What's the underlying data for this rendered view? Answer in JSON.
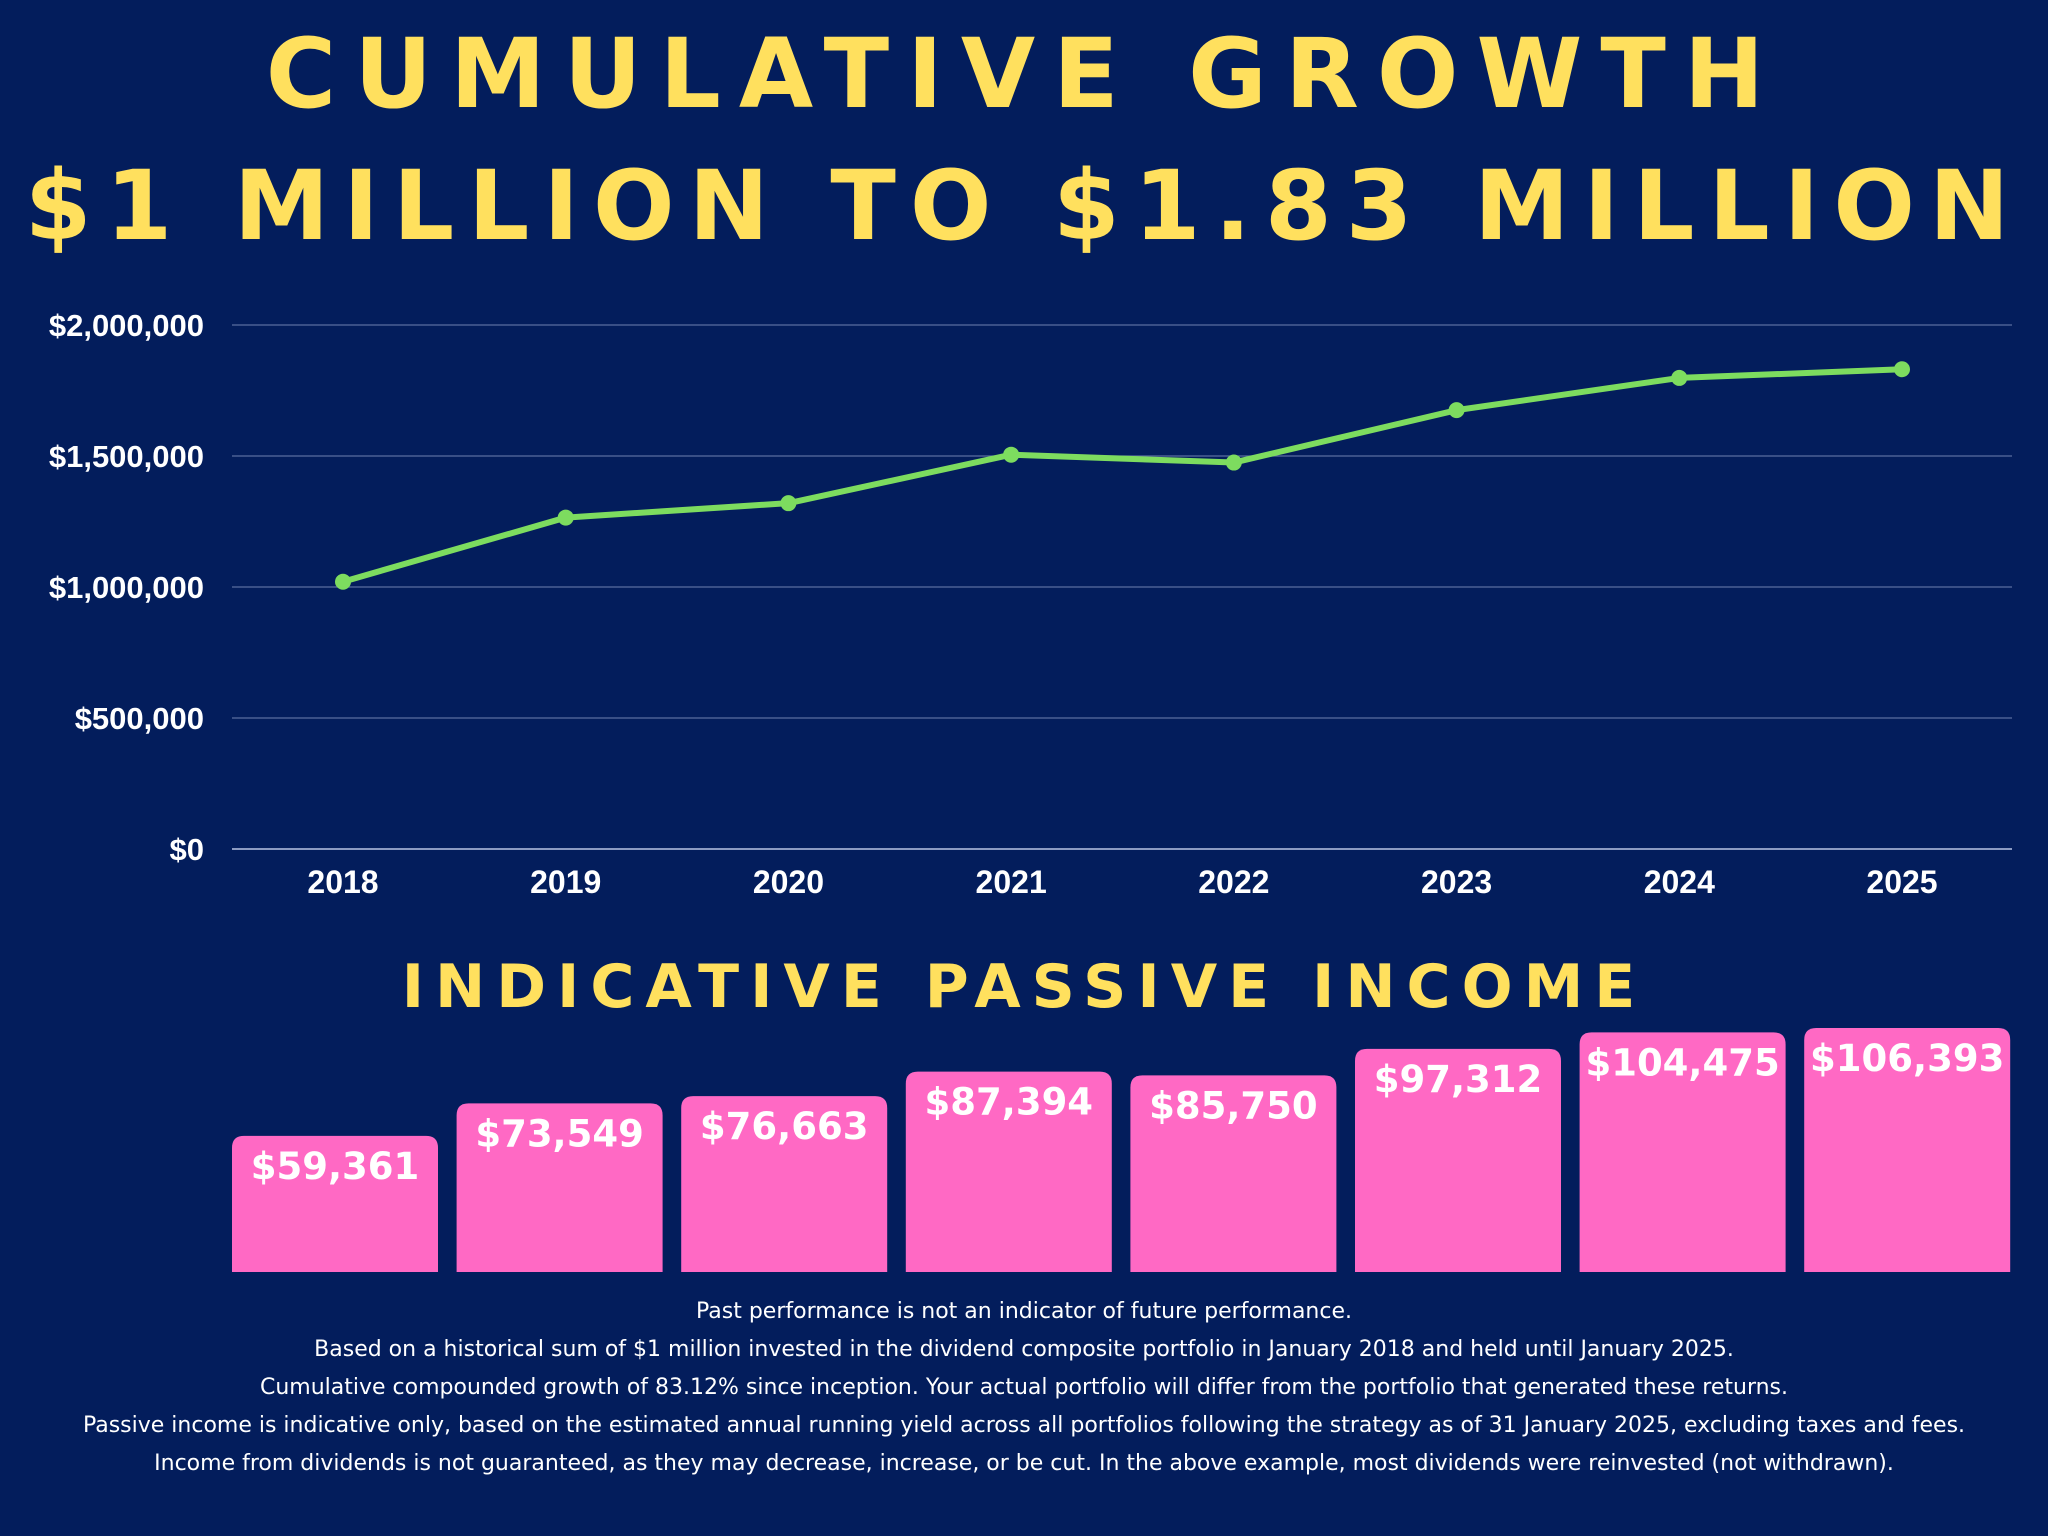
{
  "title_line1": "CUMULATIVE GROWTH",
  "title_line2": "$1 MILLION TO $1.83 MILLION",
  "income_heading": "INDICATIVE PASSIVE INCOME",
  "colors": {
    "background": "#031d5c",
    "title": "#ffe05e",
    "line": "#7ddc5f",
    "bars": "#ff69c4",
    "text": "#ffffff",
    "grid": "#5a6e9e"
  },
  "chart_data": [
    {
      "type": "line",
      "categories": [
        "2018",
        "2019",
        "2020",
        "2021",
        "2022",
        "2023",
        "2024",
        "2025"
      ],
      "values": [
        1020000,
        1265000,
        1320000,
        1505000,
        1475000,
        1675000,
        1798000,
        1831200
      ],
      "ylim": [
        0,
        2000000
      ],
      "yticks": [
        0,
        500000,
        1000000,
        1500000,
        2000000
      ],
      "ytick_labels": [
        "$0",
        "$500,000",
        "$1,000,000",
        "$1,500,000",
        "$2,000,000"
      ],
      "grid": true
    },
    {
      "type": "bar",
      "title": "INDICATIVE PASSIVE INCOME",
      "categories": [
        "2018",
        "2019",
        "2020",
        "2021",
        "2022",
        "2023",
        "2024",
        "2025"
      ],
      "values": [
        59361,
        73549,
        76663,
        87394,
        85750,
        97312,
        104475,
        106393
      ],
      "data_labels": [
        "$59,361",
        "$73,549",
        "$76,663",
        "$87,394",
        "$85,750",
        "$97,312",
        "$104,475",
        "$106,393"
      ]
    }
  ],
  "footnotes": [
    "Past performance is not an indicator of future performance.",
    "Based on a historical sum of $1 million invested in the dividend composite portfolio in January 2018 and held until January 2025.",
    "Cumulative compounded growth of 83.12% since inception. Your actual portfolio will differ from the portfolio that generated these returns.",
    "Passive income is indicative only, based on the estimated annual running yield across all portfolios following the strategy as of 31 January 2025, excluding taxes and fees.",
    "Income from dividends is not guaranteed, as they may decrease, increase, or be cut. In the above example, most dividends were reinvested (not withdrawn)."
  ]
}
